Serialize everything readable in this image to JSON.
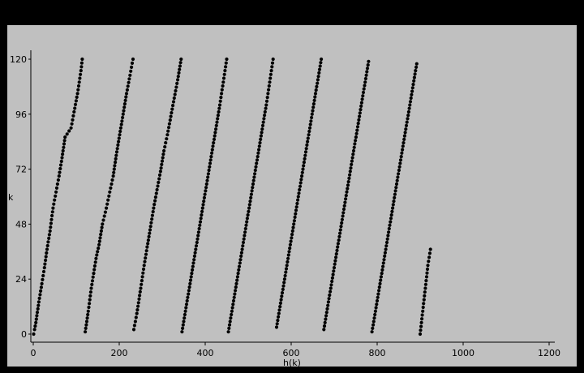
{
  "colors": {
    "background": "#000000",
    "panel": "#c0c0c0",
    "axis": "#000000",
    "points": "#000000"
  },
  "chart_data": {
    "type": "scatter",
    "title": "",
    "xlabel": "h(k)",
    "ylabel": "k",
    "xlim": [
      0,
      1200
    ],
    "ylim": [
      0,
      120
    ],
    "x_ticks": [
      0,
      200,
      400,
      600,
      800,
      1000,
      1200
    ],
    "y_ticks": [
      0,
      24,
      48,
      72,
      96,
      120
    ],
    "grid": false,
    "legend": "none",
    "series": [
      {
        "marker": "circle",
        "color": "#000000",
        "stripes": [
          {
            "points": [
              [
                1,
                0
              ],
              [
                3,
                2
              ],
              [
                6,
                5
              ],
              [
                13,
                14
              ],
              [
                20,
                22
              ],
              [
                26,
                29
              ],
              [
                32,
                37
              ],
              [
                39,
                45
              ],
              [
                46,
                55
              ],
              [
                53,
                62
              ],
              [
                60,
                69
              ],
              [
                67,
                77
              ],
              [
                74,
                86
              ],
              [
                88,
                90
              ],
              [
                95,
                97
              ],
              [
                103,
                105
              ],
              [
                111,
                115
              ],
              [
                114,
                120
              ]
            ]
          },
          {
            "points": [
              [
                121,
                1
              ],
              [
                128,
                10
              ],
              [
                135,
                20
              ],
              [
                146,
                33
              ],
              [
                153,
                39
              ],
              [
                161,
                48
              ],
              [
                170,
                55
              ],
              [
                178,
                62
              ],
              [
                186,
                69
              ],
              [
                193,
                78
              ],
              [
                201,
                87
              ],
              [
                209,
                96
              ],
              [
                217,
                105
              ],
              [
                225,
                113
              ],
              [
                232,
                120
              ]
            ]
          },
          {
            "points": [
              [
                234,
                2
              ],
              [
                241,
                9
              ],
              [
                250,
                20
              ],
              [
                258,
                30
              ],
              [
                265,
                38
              ],
              [
                273,
                47
              ],
              [
                280,
                55
              ],
              [
                288,
                63
              ],
              [
                296,
                71
              ],
              [
                304,
                80
              ],
              [
                312,
                87
              ],
              [
                320,
                95
              ],
              [
                328,
                103
              ],
              [
                336,
                111
              ],
              [
                344,
                120
              ]
            ]
          },
          {
            "points": [
              [
                346,
                1
              ],
              [
                354,
                10
              ],
              [
                362,
                19
              ],
              [
                370,
                28
              ],
              [
                378,
                37
              ],
              [
                386,
                46
              ],
              [
                394,
                55
              ],
              [
                402,
                64
              ],
              [
                410,
                73
              ],
              [
                418,
                82
              ],
              [
                426,
                91
              ],
              [
                434,
                100
              ],
              [
                442,
                110
              ],
              [
                450,
                120
              ]
            ]
          },
          {
            "points": [
              [
                454,
                1
              ],
              [
                462,
                10
              ],
              [
                470,
                19
              ],
              [
                478,
                28
              ],
              [
                486,
                37
              ],
              [
                494,
                46
              ],
              [
                502,
                55
              ],
              [
                510,
                64
              ],
              [
                518,
                73
              ],
              [
                526,
                82
              ],
              [
                534,
                91
              ],
              [
                542,
                100
              ],
              [
                550,
                110
              ],
              [
                558,
                120
              ]
            ]
          },
          {
            "points": [
              [
                566,
                3
              ],
              [
                574,
                12
              ],
              [
                582,
                21
              ],
              [
                590,
                30
              ],
              [
                598,
                39
              ],
              [
                606,
                48
              ],
              [
                614,
                57
              ],
              [
                622,
                66
              ],
              [
                630,
                75
              ],
              [
                638,
                84
              ],
              [
                646,
                93
              ],
              [
                654,
                102
              ],
              [
                662,
                111
              ],
              [
                670,
                120
              ]
            ]
          },
          {
            "points": [
              [
                676,
                2
              ],
              [
                684,
                11
              ],
              [
                692,
                20
              ],
              [
                700,
                29
              ],
              [
                708,
                38
              ],
              [
                716,
                47
              ],
              [
                724,
                56
              ],
              [
                732,
                65
              ],
              [
                740,
                74
              ],
              [
                748,
                83
              ],
              [
                756,
                92
              ],
              [
                764,
                101
              ],
              [
                772,
                110
              ],
              [
                780,
                119
              ]
            ]
          },
          {
            "points": [
              [
                788,
                1
              ],
              [
                796,
                10
              ],
              [
                804,
                19
              ],
              [
                812,
                28
              ],
              [
                820,
                37
              ],
              [
                828,
                46
              ],
              [
                836,
                55
              ],
              [
                844,
                64
              ],
              [
                852,
                73
              ],
              [
                860,
                82
              ],
              [
                868,
                91
              ],
              [
                876,
                100
              ],
              [
                884,
                109
              ],
              [
                892,
                118
              ]
            ]
          },
          {
            "points": [
              [
                900,
                0
              ],
              [
                906,
                10
              ],
              [
                912,
                20
              ],
              [
                918,
                30
              ],
              [
                924,
                37
              ]
            ]
          }
        ]
      }
    ]
  }
}
